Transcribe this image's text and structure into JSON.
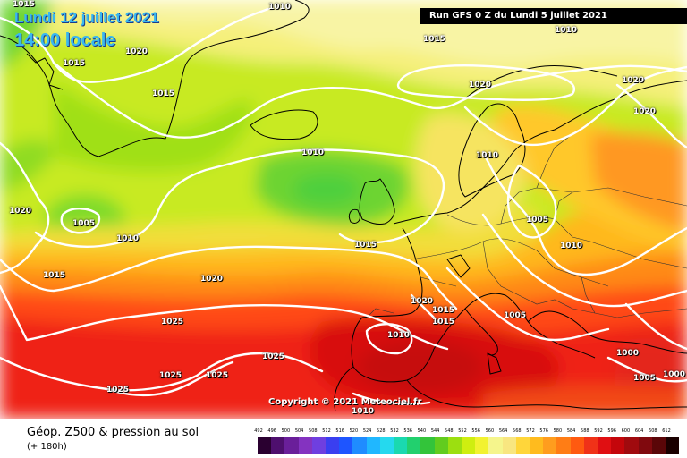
{
  "header": {
    "date_line": "Lundi 12 juillet 2021",
    "time_line": "14:00 locale",
    "run_info": "Run GFS 0 Z du Lundi 5 juillet 2021"
  },
  "copyright": "Copyright © 2021 Meteociel.fr",
  "footer": {
    "field_title": "Géop. Z500 & pression au sol",
    "lead_time": "(+ 180h)"
  },
  "legend": {
    "values": [
      "492",
      "496",
      "500",
      "504",
      "508",
      "512",
      "516",
      "520",
      "524",
      "528",
      "532",
      "536",
      "540",
      "544",
      "548",
      "552",
      "556",
      "560",
      "564",
      "568",
      "572",
      "576",
      "580",
      "584",
      "588",
      "592",
      "596",
      "600",
      "604",
      "608",
      "612"
    ],
    "colors": [
      "#2a0030",
      "#4e0f6e",
      "#6a1f9a",
      "#8433c0",
      "#6f3fe0",
      "#3a3ff0",
      "#1e55ff",
      "#1f8cff",
      "#20b7ff",
      "#25d9ee",
      "#1ad9b0",
      "#22d06e",
      "#33c43a",
      "#62cc1e",
      "#9cdf10",
      "#cfee10",
      "#f2f230",
      "#f5f58c",
      "#f8e680",
      "#ffd63a",
      "#ffbb1e",
      "#ff9d1e",
      "#ff7d15",
      "#ff5a10",
      "#f03218",
      "#e00f12",
      "#c4060b",
      "#a00a0e",
      "#80090e",
      "#5a0608",
      "#1a0000"
    ]
  },
  "isobar_labels": [
    "1015",
    "1010",
    "1020",
    "1015",
    "1015",
    "1010",
    "1015",
    "1020",
    "1020",
    "1020",
    "1010",
    "1020",
    "1005",
    "1010",
    "1015",
    "1005",
    "1010",
    "1010",
    "1015",
    "1020",
    "1020",
    "1015",
    "1015",
    "1010",
    "1005",
    "1025",
    "1025",
    "1025",
    "1025",
    "1025",
    "1000",
    "1005",
    "1000",
    "1010"
  ]
}
